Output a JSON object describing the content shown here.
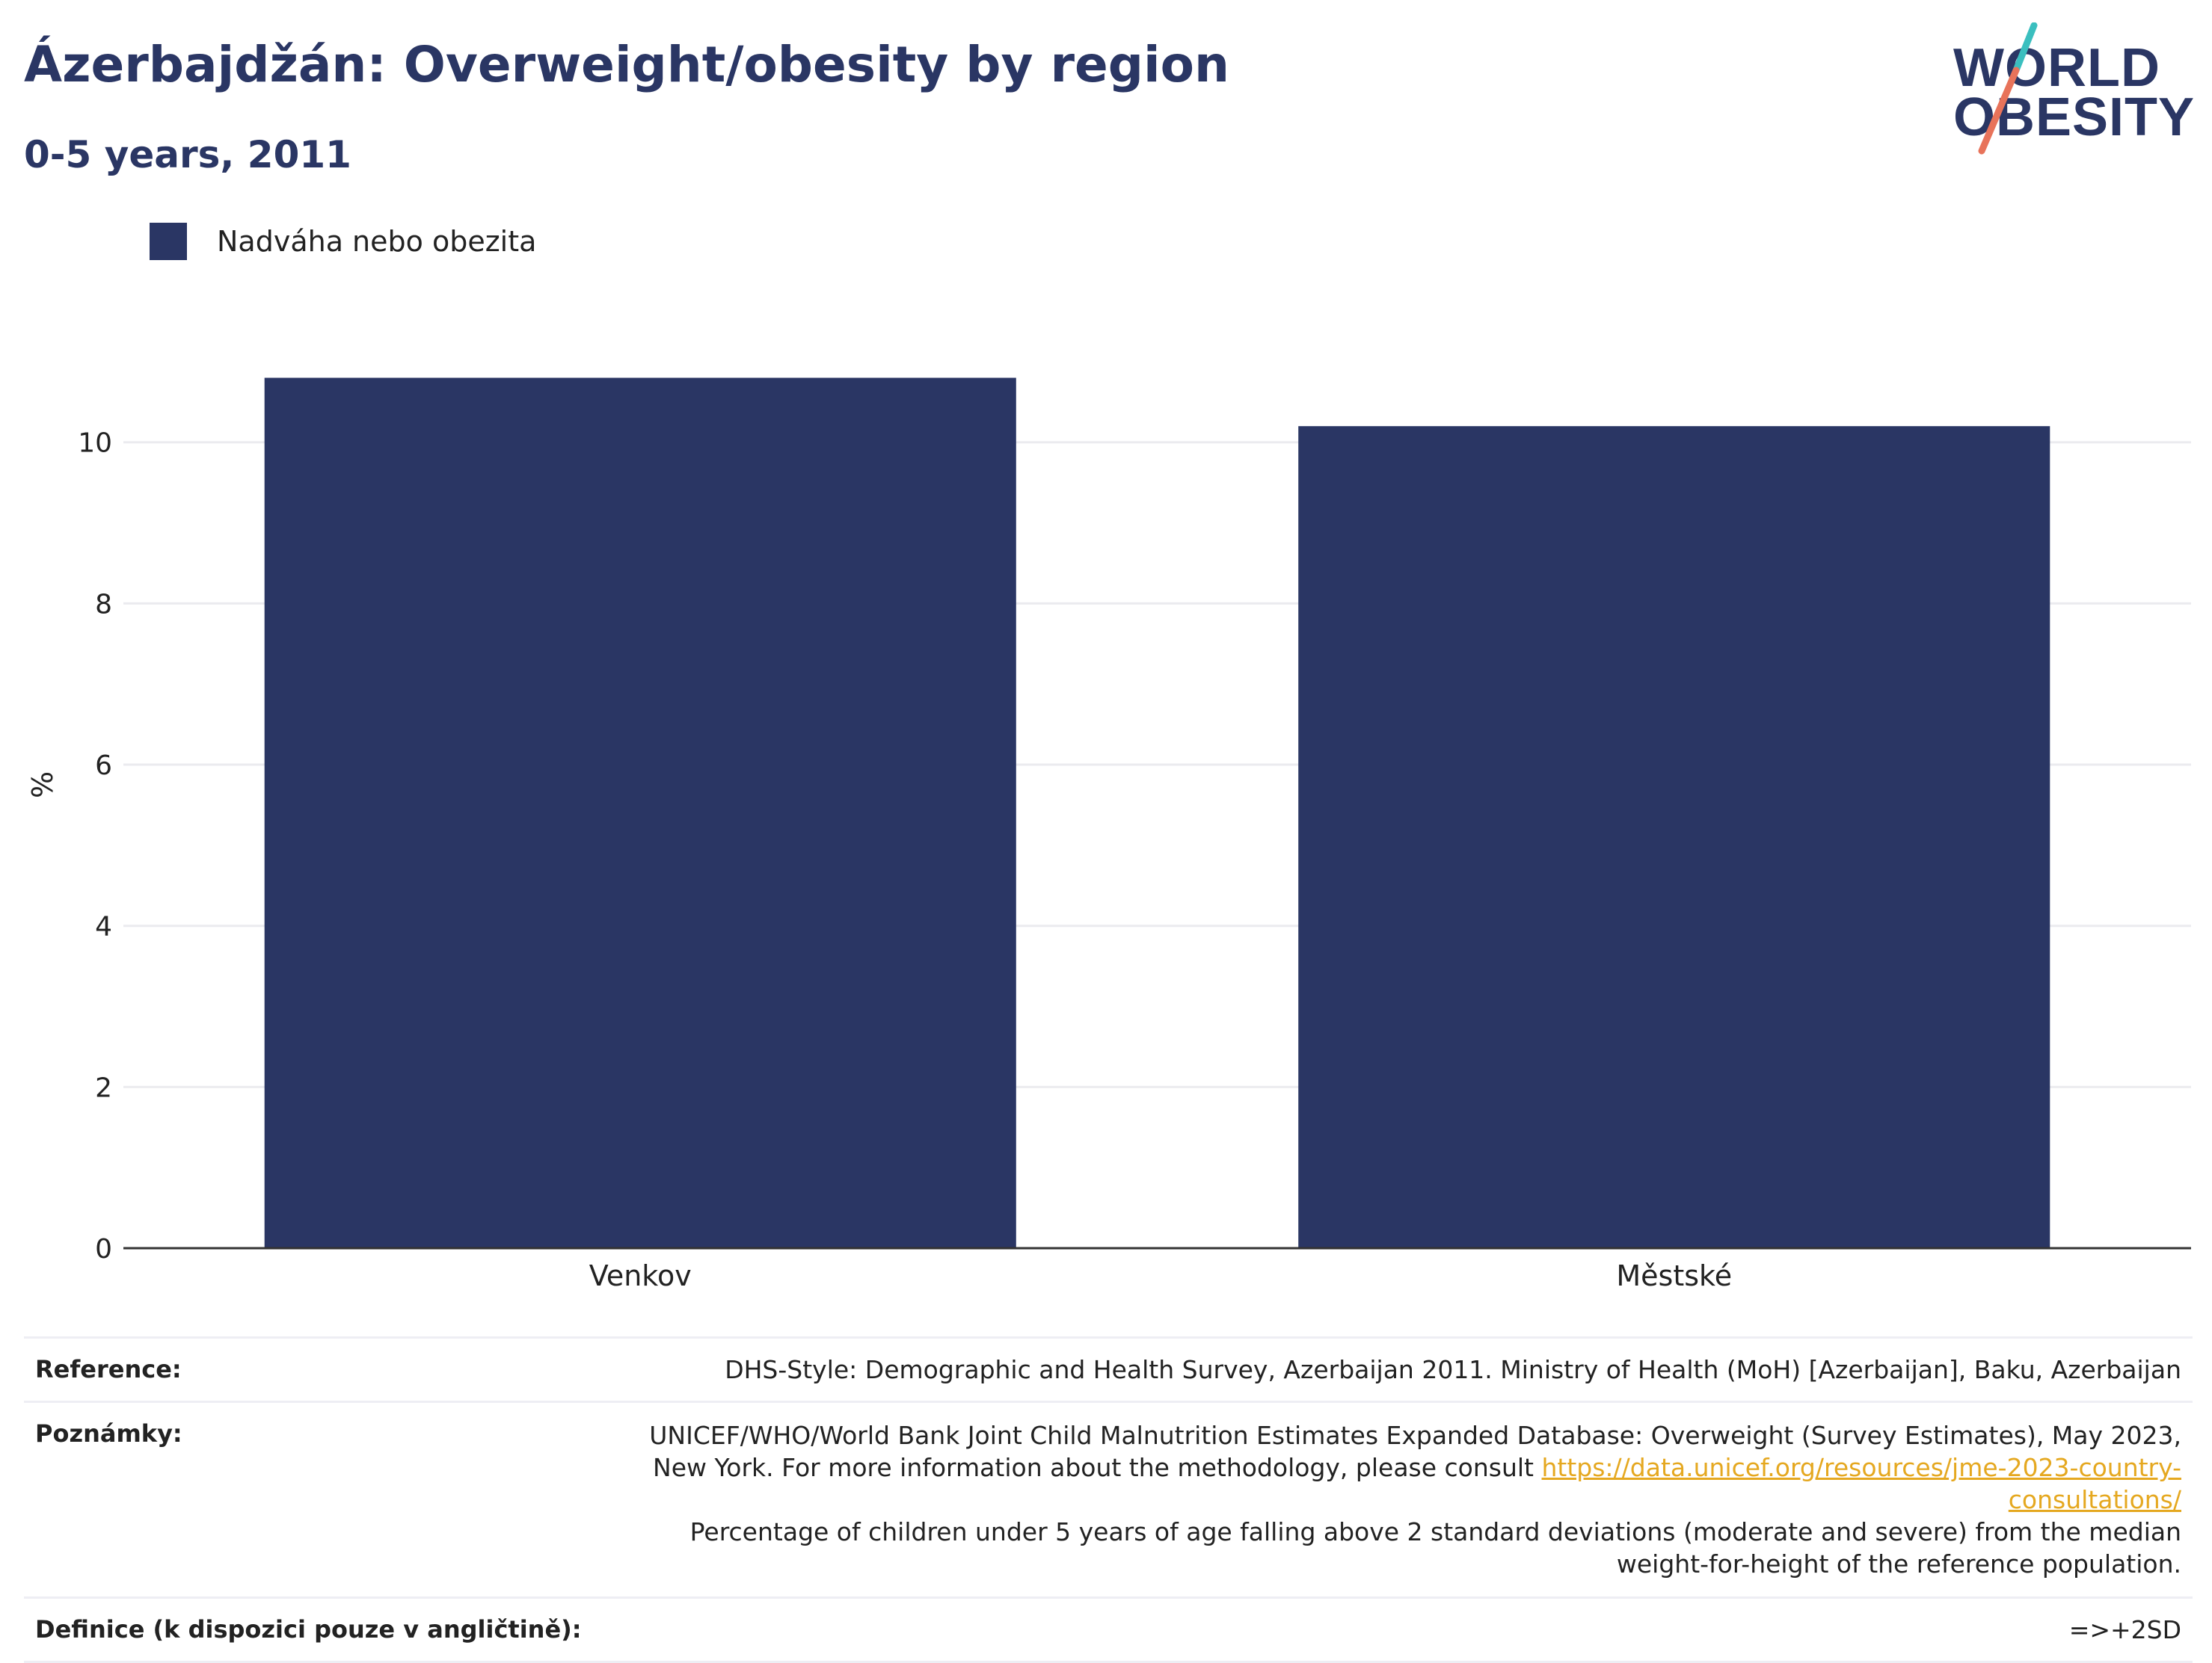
{
  "header": {
    "title": "Ázerbajdžán: Overweight/obesity by region",
    "subtitle": "0-5 years, 2011"
  },
  "logo": {
    "line1": "WORLD",
    "line2": "OBESITY",
    "colors": {
      "text": "#2a3664",
      "stroke_top": "#3bbfbf",
      "stroke_bottom": "#e8735a"
    }
  },
  "legend": {
    "label": "Nadváha nebo obezita",
    "color": "#2a3664"
  },
  "chart_data": {
    "type": "bar",
    "categories": [
      "Venkov",
      "Městské"
    ],
    "series": [
      {
        "name": "Nadváha nebo obezita",
        "values": [
          10.8,
          10.2
        ],
        "color": "#2a3664"
      }
    ],
    "ylabel": "%",
    "xlabel": "",
    "ylim": [
      0,
      11.5
    ],
    "yticks": [
      0,
      2,
      4,
      6,
      8,
      10
    ],
    "grid": true,
    "legend_position": "top-left"
  },
  "notes": {
    "reference_key": "Reference:",
    "reference_value": "DHS-Style: Demographic and Health Survey, Azerbaijan 2011. Ministry of Health (MoH) [Azerbaijan], Baku, Azerbaijan",
    "notes_key": "Poznámky:",
    "notes_text_1": "UNICEF/WHO/World Bank Joint Child Malnutrition Estimates Expanded Database: Overweight (Survey Estimates), May 2023, New York. For more information about the methodology, please consult",
    "notes_link": "https://data.unicef.org/resources/jme-2023-country-consultations/",
    "notes_text_2": "Percentage of children under 5 years of age falling above 2 standard deviations (moderate and severe) from the median weight-for-height of the reference population.",
    "definition_key": "Definice (k dispozici pouze v angličtině):",
    "definition_value": "=>+2SD"
  }
}
